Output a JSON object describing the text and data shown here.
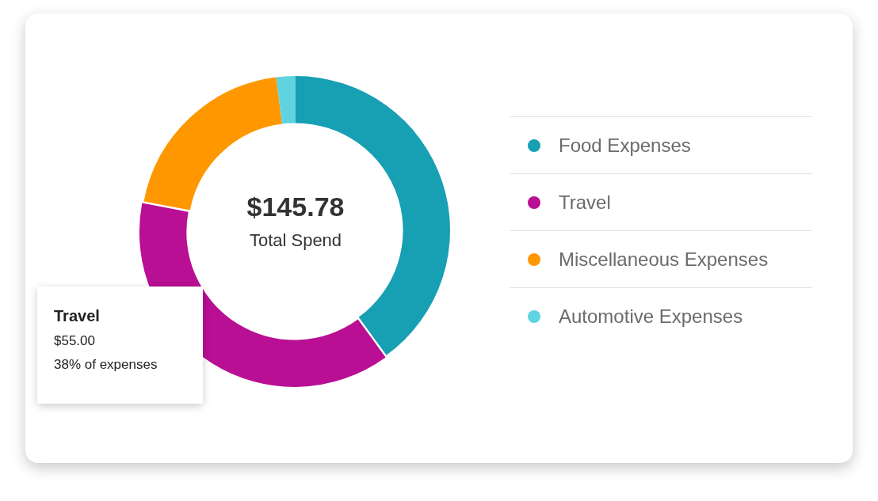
{
  "chart_data": {
    "type": "donut",
    "categories": [
      "Food Expenses",
      "Travel",
      "Miscellaneous Expenses",
      "Automotive Expenses"
    ],
    "values": [
      40,
      38,
      20,
      2
    ],
    "colors": [
      "#179fb3",
      "#b80f94",
      "#ff9800",
      "#5fd3e0"
    ],
    "legend": "right",
    "annotations": [
      "$145.78",
      "Total Spend",
      "Travel",
      "$55.00",
      "38% of expenses"
    ]
  }
}
